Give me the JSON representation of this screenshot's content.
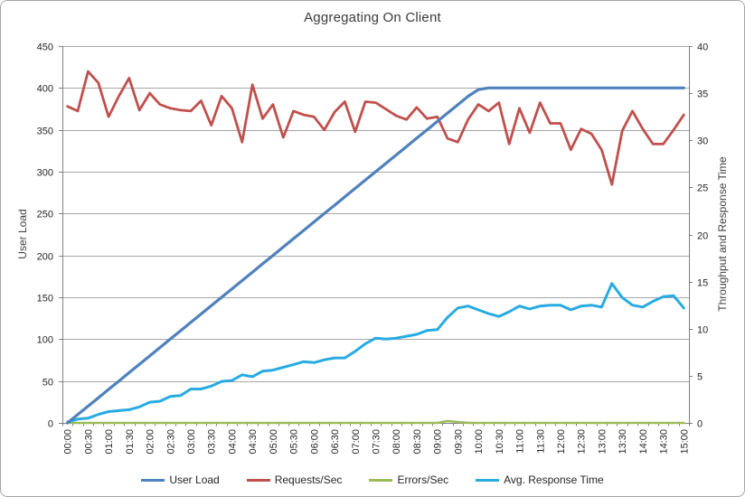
{
  "chart_data": {
    "type": "line",
    "title": "Aggregating On Client",
    "legend_position": "bottom",
    "grid": "horizontal",
    "categories": [
      "00:00",
      "00:15",
      "00:30",
      "00:45",
      "01:00",
      "01:15",
      "01:30",
      "01:45",
      "02:00",
      "02:15",
      "02:30",
      "02:45",
      "03:00",
      "03:15",
      "03:30",
      "03:45",
      "04:00",
      "04:15",
      "04:30",
      "04:45",
      "05:00",
      "05:15",
      "05:30",
      "05:45",
      "06:00",
      "06:15",
      "06:30",
      "06:45",
      "07:00",
      "07:15",
      "07:30",
      "07:45",
      "08:00",
      "08:15",
      "08:30",
      "08:45",
      "09:00",
      "09:15",
      "09:30",
      "09:45",
      "10:00",
      "10:15",
      "10:30",
      "10:45",
      "11:00",
      "11:15",
      "11:30",
      "11:45",
      "12:00",
      "12:15",
      "12:30",
      "12:45",
      "13:00",
      "13:15",
      "13:30",
      "13:45",
      "14:00",
      "14:15",
      "14:30",
      "14:45",
      "15:00"
    ],
    "x_tick_labels": [
      "00:00",
      "00:30",
      "01:00",
      "01:30",
      "02:00",
      "02:30",
      "03:00",
      "03:30",
      "04:00",
      "04:30",
      "05:00",
      "05:30",
      "06:00",
      "06:30",
      "07:00",
      "07:30",
      "08:00",
      "08:30",
      "09:00",
      "09:30",
      "10:00",
      "10:30",
      "11:00",
      "11:30",
      "12:00",
      "12:30",
      "13:00",
      "13:30",
      "14:00",
      "14:30",
      "15:00"
    ],
    "left_axis": {
      "label": "User Load",
      "min": 0,
      "max": 450,
      "ticks": [
        "0",
        "50",
        "100",
        "150",
        "200",
        "250",
        "300",
        "350",
        "400",
        "450"
      ]
    },
    "right_axis": {
      "label": "Throughput and Response Time",
      "min": 0,
      "max": 40,
      "ticks": [
        "0",
        "5",
        "10",
        "15",
        "20",
        "25",
        "30",
        "35",
        "40"
      ]
    },
    "series": [
      {
        "name": "User Load",
        "color": "#4F81BD",
        "axis": "left",
        "values": [
          0,
          10,
          20,
          30,
          40,
          50,
          60,
          70,
          80,
          90,
          100,
          110,
          120,
          130,
          140,
          150,
          160,
          170,
          180,
          190,
          200,
          210,
          220,
          230,
          240,
          250,
          260,
          270,
          280,
          290,
          300,
          310,
          320,
          330,
          340,
          350,
          360,
          370,
          380,
          390,
          398,
          400,
          400,
          400,
          400,
          400,
          400,
          400,
          400,
          400,
          400,
          400,
          400,
          400,
          400,
          400,
          400,
          400,
          400,
          400,
          400
        ]
      },
      {
        "name": "Requests/Sec",
        "color": "#C0504D",
        "axis": "right",
        "values": [
          33.6,
          33.1,
          37.3,
          36.1,
          32.5,
          34.7,
          36.6,
          33.2,
          35.0,
          33.8,
          33.4,
          33.2,
          33.1,
          34.2,
          31.6,
          34.7,
          33.4,
          29.8,
          35.9,
          32.3,
          33.8,
          30.3,
          33.1,
          32.7,
          32.5,
          31.1,
          33.0,
          34.1,
          30.9,
          34.1,
          34.0,
          33.3,
          32.6,
          32.2,
          33.5,
          32.3,
          32.5,
          30.2,
          29.8,
          32.2,
          33.8,
          33.1,
          34.0,
          29.6,
          33.4,
          30.8,
          34.0,
          31.8,
          31.8,
          29.0,
          31.2,
          30.7,
          29.0,
          25.3,
          31.0,
          33.1,
          31.2,
          29.6,
          29.6,
          31.1,
          32.7
        ]
      },
      {
        "name": "Errors/Sec",
        "color": "#9BBB59",
        "axis": "right",
        "values": [
          0,
          0,
          0,
          0,
          0,
          0,
          0,
          0,
          0,
          0,
          0,
          0,
          0,
          0,
          0,
          0,
          0,
          0,
          0,
          0,
          0,
          0,
          0,
          0,
          0,
          0,
          0,
          0,
          0,
          0,
          0,
          0,
          0,
          0,
          0,
          0,
          0,
          0.2,
          0.1,
          0,
          0,
          0,
          0,
          0,
          0,
          0,
          0,
          0,
          0,
          0,
          0,
          0,
          0,
          0,
          0,
          0,
          0,
          0,
          0,
          0,
          0
        ]
      },
      {
        "name": "Avg. Response Time",
        "color": "#27ABE2",
        "axis": "right",
        "values": [
          0.1,
          0.4,
          0.5,
          0.9,
          1.2,
          1.3,
          1.4,
          1.7,
          2.2,
          2.3,
          2.8,
          2.9,
          3.6,
          3.6,
          3.9,
          4.4,
          4.5,
          5.1,
          4.9,
          5.5,
          5.6,
          5.9,
          6.2,
          6.5,
          6.4,
          6.7,
          6.9,
          6.9,
          7.6,
          8.4,
          9.0,
          8.9,
          9.0,
          9.2,
          9.4,
          9.8,
          9.9,
          11.2,
          12.2,
          12.4,
          12.0,
          11.6,
          11.3,
          11.8,
          12.4,
          12.1,
          12.4,
          12.5,
          12.5,
          12.0,
          12.4,
          12.5,
          12.3,
          14.8,
          13.3,
          12.5,
          12.3,
          12.9,
          13.4,
          13.5,
          12.2
        ]
      }
    ]
  }
}
